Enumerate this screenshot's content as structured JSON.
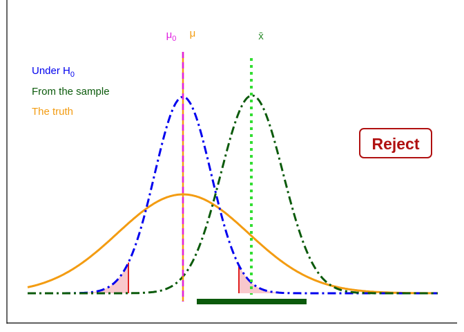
{
  "labels": {
    "mu0": {
      "text": "μ",
      "sub": "0"
    },
    "mu": "μ",
    "xbar": "x̄",
    "legend": [
      {
        "text": "Under H",
        "sub": "0"
      },
      {
        "text": "From the sample"
      },
      {
        "text": "The truth"
      }
    ],
    "decision": "Reject"
  }
}
